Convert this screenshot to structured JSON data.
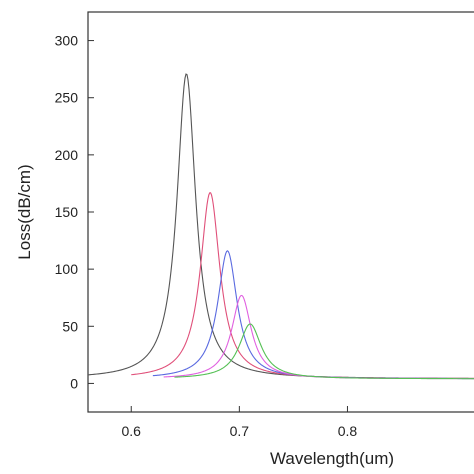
{
  "chart_data": {
    "type": "line",
    "title": "",
    "xlabel": "Wavelength(um)",
    "ylabel": "Loss(dB/cm)",
    "xlim": [
      0.56,
      0.93
    ],
    "ylim": [
      -25,
      325
    ],
    "xticks": [
      0.6,
      0.7,
      0.8
    ],
    "xtick_labels": [
      "0.6",
      "0.7",
      "0.8"
    ],
    "yticks": [
      0,
      50,
      100,
      150,
      200,
      250,
      300
    ],
    "ytick_labels": [
      "0",
      "50",
      "100",
      "150",
      "200",
      "250",
      "300"
    ],
    "grid": false,
    "legend": "none",
    "series": [
      {
        "color": "#555555",
        "x_range": [
          0.56,
          0.93
        ],
        "peak_x": 0.651,
        "peak_y": 271,
        "baseline": 4,
        "fwhm": 0.021
      },
      {
        "color": "#e0507a",
        "x_range": [
          0.6,
          0.93
        ],
        "peak_x": 0.673,
        "peak_y": 167,
        "baseline": 4,
        "fwhm": 0.022
      },
      {
        "color": "#5a6ae0",
        "x_range": [
          0.62,
          0.93
        ],
        "peak_x": 0.689,
        "peak_y": 116,
        "baseline": 4,
        "fwhm": 0.022
      },
      {
        "color": "#e060e0",
        "x_range": [
          0.63,
          0.93
        ],
        "peak_x": 0.702,
        "peak_y": 77,
        "baseline": 4,
        "fwhm": 0.022
      },
      {
        "color": "#55c055",
        "x_range": [
          0.64,
          0.93
        ],
        "peak_x": 0.71,
        "peak_y": 52,
        "baseline": 4,
        "fwhm": 0.025
      }
    ]
  }
}
